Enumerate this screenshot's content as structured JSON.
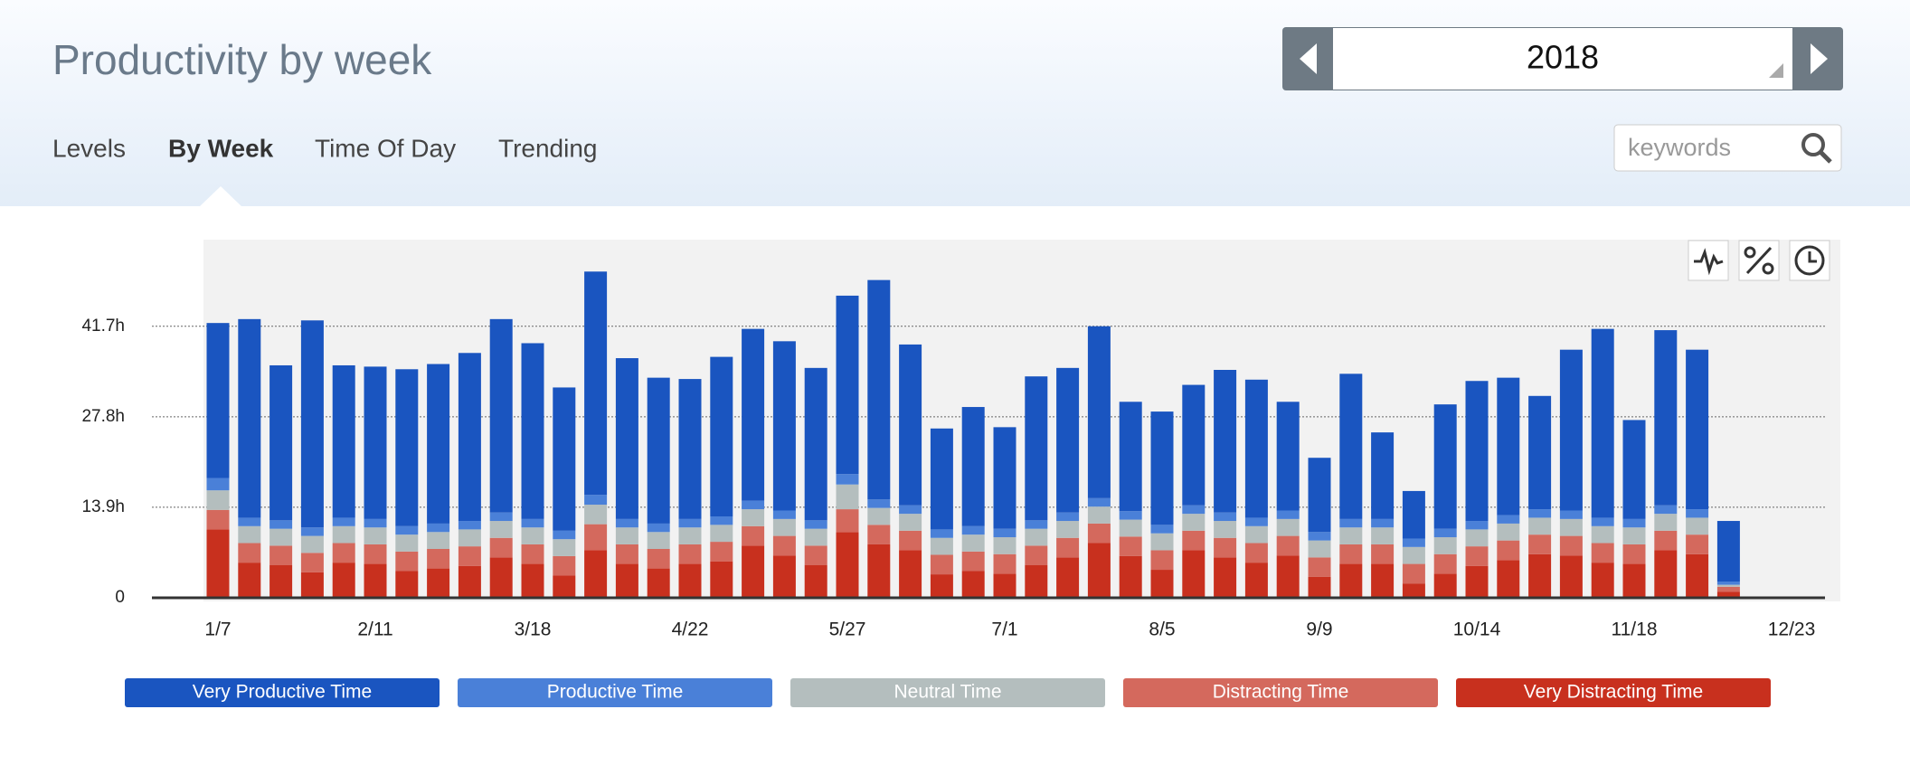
{
  "header": {
    "title": "Productivity by week",
    "year": "2018",
    "tabs": [
      "Levels",
      "By Week",
      "Time Of Day",
      "Trending"
    ],
    "search_placeholder": "keywords"
  },
  "chart_data": {
    "type": "stacked-bar",
    "categories": [
      "1/7",
      null,
      null,
      null,
      null,
      "2/11",
      null,
      null,
      null,
      null,
      "3/18",
      null,
      null,
      null,
      null,
      "4/22",
      null,
      null,
      null,
      null,
      "5/27",
      null,
      null,
      null,
      null,
      "7/1",
      null,
      null,
      null,
      null,
      "8/5",
      null,
      null,
      null,
      null,
      "9/9",
      null,
      null,
      null,
      null,
      "10/14",
      null,
      null,
      null,
      null,
      "11/18",
      null,
      null,
      null,
      null,
      "12/23"
    ],
    "series": [
      {
        "name": "Very Productive Time",
        "color": "#1a55c0",
        "values": [
          23.8,
          30.5,
          23.8,
          31.8,
          23.4,
          23.4,
          24.1,
          24.5,
          25.8,
          29.7,
          27.0,
          22.0,
          34.3,
          24.7,
          22.4,
          21.5,
          24.5,
          26.4,
          26.0,
          23.4,
          27.4,
          33.7,
          24.7,
          15.5,
          18.3,
          15.6,
          22.1,
          22.2,
          26.4,
          16.8,
          17.4,
          18.5,
          21.9,
          21.2,
          16.7,
          11.4,
          22.3,
          13.3,
          7.3,
          19.1,
          21.5,
          21.1,
          17.4,
          24.7,
          29.0,
          15.2,
          26.9,
          24.5,
          9.3,
          null,
          null
        ]
      },
      {
        "name": "Productive Time",
        "color": "#4a80d8",
        "values": [
          1.9,
          1.3,
          1.3,
          1.3,
          1.3,
          1.3,
          1.3,
          1.3,
          1.3,
          1.3,
          1.3,
          1.3,
          1.5,
          1.3,
          1.3,
          1.3,
          1.3,
          1.3,
          1.3,
          1.3,
          1.6,
          1.3,
          1.3,
          1.3,
          1.3,
          1.3,
          1.3,
          1.3,
          1.3,
          1.3,
          1.3,
          1.3,
          1.3,
          1.3,
          1.3,
          1.3,
          1.3,
          1.3,
          1.3,
          1.3,
          1.3,
          1.3,
          1.3,
          1.3,
          1.3,
          1.3,
          1.3,
          1.3,
          0.5,
          null,
          null
        ]
      },
      {
        "name": "Neutral Time",
        "color": "#b4bebe",
        "values": [
          3.0,
          2.6,
          2.6,
          2.6,
          2.6,
          2.6,
          2.6,
          2.6,
          2.6,
          2.6,
          2.6,
          2.6,
          3.0,
          2.6,
          2.6,
          2.6,
          2.6,
          2.6,
          2.6,
          2.6,
          3.8,
          2.6,
          2.6,
          2.6,
          2.6,
          2.6,
          2.6,
          2.6,
          2.6,
          2.6,
          2.6,
          2.6,
          2.6,
          2.6,
          2.6,
          2.6,
          2.6,
          2.6,
          2.6,
          2.6,
          2.6,
          2.6,
          2.6,
          2.6,
          2.6,
          2.6,
          2.6,
          2.6,
          0.3,
          null,
          null
        ]
      },
      {
        "name": "Distracting Time",
        "color": "#d4695d",
        "values": [
          3.0,
          3.0,
          3.0,
          3.0,
          3.0,
          3.0,
          3.0,
          3.0,
          3.0,
          3.0,
          3.0,
          3.0,
          4.0,
          3.0,
          3.0,
          3.0,
          3.0,
          3.0,
          3.0,
          3.0,
          3.5,
          3.0,
          3.0,
          3.0,
          3.0,
          3.0,
          3.0,
          3.0,
          3.0,
          3.0,
          3.0,
          3.0,
          3.0,
          3.0,
          3.0,
          3.0,
          3.0,
          3.0,
          3.0,
          3.0,
          3.0,
          3.0,
          3.0,
          3.0,
          3.0,
          3.0,
          3.0,
          3.0,
          0.8,
          null,
          null
        ]
      },
      {
        "name": "Very Distracting Time",
        "color": "#c8301e",
        "values": [
          10.5,
          5.4,
          5.0,
          3.9,
          5.4,
          5.2,
          4.1,
          4.5,
          4.9,
          6.2,
          5.2,
          3.4,
          7.3,
          5.2,
          4.5,
          5.2,
          5.6,
          8.0,
          6.5,
          5.0,
          10.1,
          8.2,
          7.3,
          3.6,
          4.1,
          3.7,
          5.0,
          6.2,
          8.4,
          6.4,
          4.3,
          7.3,
          6.2,
          5.4,
          6.5,
          3.2,
          5.2,
          5.2,
          2.2,
          3.7,
          4.9,
          5.8,
          6.7,
          6.5,
          5.4,
          5.2,
          7.3,
          6.7,
          0.9,
          null,
          null
        ]
      }
    ],
    "ylim": [
      0,
      55
    ],
    "yticks": [
      0,
      {
        "value": 13.9,
        "label": "13.9h"
      },
      {
        "value": 27.8,
        "label": "27.8h"
      },
      {
        "value": 41.7,
        "label": "41.7h"
      }
    ],
    "grid": true
  }
}
